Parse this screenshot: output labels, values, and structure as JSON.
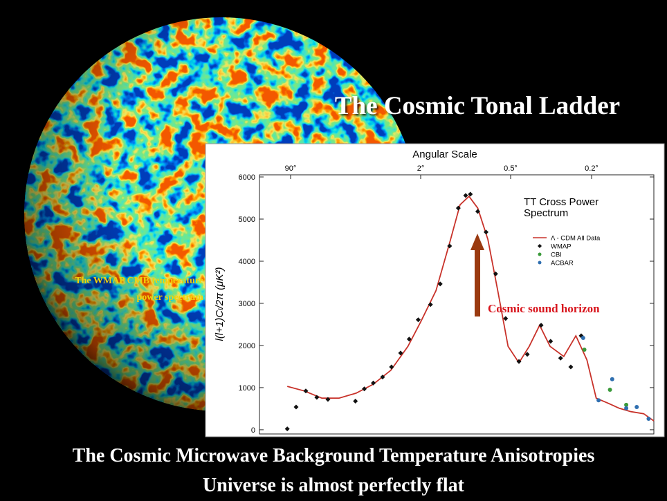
{
  "slide": {
    "title": "The Cosmic Tonal Ladder",
    "side_label_lines": [
      "The WMAP CMB temperature",
      "power spectrum"
    ],
    "annotation": "Cosmic sound horizon",
    "footer_lines": [
      "The Cosmic Microwave Background Temperature Anisotropies",
      "Universe is almost perfectly flat"
    ]
  },
  "chart_data": {
    "type": "line",
    "x_label": "Angular Scale",
    "y_label": "l(l+1)Cₗ/2π (μK²)",
    "legend_title_lines": [
      "TT Cross Power",
      "Spectrum"
    ],
    "xlim": [
      200,
      0.1
    ],
    "xticks": [
      {
        "value": 90,
        "label": "90°"
      },
      {
        "value": 2,
        "label": "2°"
      },
      {
        "value": 0.5,
        "label": "0.5°"
      },
      {
        "value": 0.2,
        "label": "0.2°"
      }
    ],
    "ylim": [
      -100,
      6050
    ],
    "yticks": [
      0,
      1000,
      2000,
      3000,
      4000,
      5000,
      6000
    ],
    "series": [
      {
        "name": "Λ - CDM All Data",
        "color": "#c8322a",
        "mark": "line",
        "x": [
          98,
          60,
          36,
          21.9,
          13.2,
          8.0,
          4.8,
          2.9,
          2.0,
          1.58,
          1.28,
          1.09,
          0.95,
          0.83,
          0.71,
          0.61,
          0.52,
          0.455,
          0.405,
          0.36,
          0.32,
          0.274,
          0.239,
          0.211,
          0.19,
          0.168,
          0.147,
          0.129,
          0.112,
          0.1
        ],
        "values": [
          1030,
          920,
          750,
          750,
          870,
          1080,
          1410,
          1980,
          2560,
          3300,
          4440,
          5340,
          5540,
          5260,
          4520,
          3300,
          1980,
          1590,
          1980,
          2480,
          1980,
          1740,
          2230,
          1660,
          750,
          640,
          510,
          430,
          380,
          210
        ]
      },
      {
        "name": "WMAP",
        "color": "#111111",
        "mark": "diamond",
        "x": [
          98,
          76.6,
          57.7,
          41.8,
          30.2,
          13.5,
          10.4,
          8.0,
          6.1,
          4.7,
          3.6,
          2.8,
          2.15,
          1.72,
          1.48,
          1.28,
          1.12,
          1.0,
          0.93,
          0.83,
          0.73,
          0.63,
          0.54,
          0.455,
          0.414,
          0.354,
          0.318,
          0.284,
          0.253,
          0.225
        ],
        "values": [
          20,
          540,
          920,
          770,
          720,
          680,
          970,
          1110,
          1250,
          1490,
          1820,
          2150,
          2610,
          2970,
          3460,
          4360,
          5260,
          5560,
          5590,
          5180,
          4690,
          3700,
          2640,
          1620,
          1790,
          2480,
          2100,
          1700,
          1490,
          2230
        ]
      },
      {
        "name": "CBI",
        "color": "#3a9a3a",
        "mark": "dot",
        "x": [
          0.217,
          0.163,
          0.136
        ],
        "values": [
          1900,
          950,
          590
        ]
      },
      {
        "name": "ACBAR",
        "color": "#2f6fb0",
        "mark": "dot",
        "x": [
          0.22,
          0.185,
          0.159,
          0.136,
          0.121,
          0.106
        ],
        "values": [
          2180,
          700,
          1200,
          510,
          540,
          260
        ]
      }
    ]
  }
}
